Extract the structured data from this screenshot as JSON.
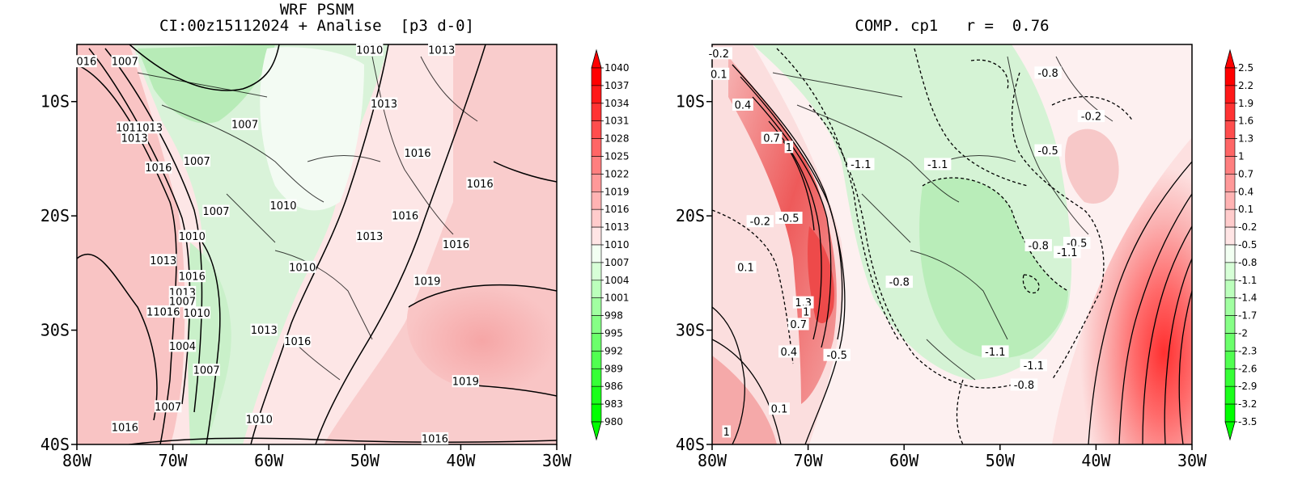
{
  "left_panel": {
    "title_line1": "WRF PSNM",
    "title_line2": "CI:00z15112024 + Analise  [p3 d-0]",
    "colorbar_levels": [
      "1040",
      "1037",
      "1034",
      "1031",
      "1028",
      "1025",
      "1022",
      "1019",
      "1016",
      "1013",
      "1010",
      "1007",
      "1004",
      "1001",
      "998",
      "995",
      "992",
      "989",
      "986",
      "983",
      "980"
    ],
    "contour_labels": [
      {
        "text": "016",
        "lon": -79.0,
        "lat": -6.5
      },
      {
        "text": "1007",
        "lon": -75.0,
        "lat": -6.5
      },
      {
        "text": "1010",
        "lon": -49.5,
        "lat": -5.5
      },
      {
        "text": "1013",
        "lon": -42.0,
        "lat": -5.5
      },
      {
        "text": "1013",
        "lon": -48.0,
        "lat": -10.2
      },
      {
        "text": "1007",
        "lon": -62.5,
        "lat": -12.0
      },
      {
        "text": "1011013",
        "lon": -73.5,
        "lat": -12.3
      },
      {
        "text": "1013",
        "lon": -74.0,
        "lat": -13.2
      },
      {
        "text": "1007",
        "lon": -67.5,
        "lat": -15.2
      },
      {
        "text": "1016",
        "lon": -71.5,
        "lat": -15.8
      },
      {
        "text": "1016",
        "lon": -44.5,
        "lat": -14.5
      },
      {
        "text": "1016",
        "lon": -38.0,
        "lat": -17.2
      },
      {
        "text": "1007",
        "lon": -65.5,
        "lat": -19.6
      },
      {
        "text": "1010",
        "lon": -58.5,
        "lat": -19.1
      },
      {
        "text": "1016",
        "lon": -45.8,
        "lat": -20.0
      },
      {
        "text": "1013",
        "lon": -49.5,
        "lat": -21.8
      },
      {
        "text": "1010",
        "lon": -68.0,
        "lat": -21.8
      },
      {
        "text": "1016",
        "lon": -40.5,
        "lat": -22.5
      },
      {
        "text": "1013",
        "lon": -71.0,
        "lat": -23.9
      },
      {
        "text": "1016",
        "lon": -68.0,
        "lat": -25.3
      },
      {
        "text": "1010",
        "lon": -56.5,
        "lat": -24.5
      },
      {
        "text": "1019",
        "lon": -43.5,
        "lat": -25.7
      },
      {
        "text": "1013",
        "lon": -69.0,
        "lat": -26.7
      },
      {
        "text": "1007",
        "lon": -69.0,
        "lat": -27.5
      },
      {
        "text": "11016",
        "lon": -71.0,
        "lat": -28.4
      },
      {
        "text": "1010",
        "lon": -67.5,
        "lat": -28.5
      },
      {
        "text": "1013",
        "lon": -60.5,
        "lat": -30.0
      },
      {
        "text": "1016",
        "lon": -57.0,
        "lat": -31.0
      },
      {
        "text": "1004",
        "lon": -69.0,
        "lat": -31.4
      },
      {
        "text": "1007",
        "lon": -66.5,
        "lat": -33.5
      },
      {
        "text": "1019",
        "lon": -39.5,
        "lat": -34.5
      },
      {
        "text": "1007",
        "lon": -70.5,
        "lat": -36.7
      },
      {
        "text": "1010",
        "lon": -61.0,
        "lat": -37.8
      },
      {
        "text": "1016",
        "lon": -75.0,
        "lat": -38.5
      },
      {
        "text": "1016",
        "lon": -42.7,
        "lat": -39.5
      }
    ]
  },
  "right_panel": {
    "title": "COMP. cp1   r =  0.76",
    "colorbar_levels": [
      "2.5",
      "2.2",
      "1.9",
      "1.6",
      "1.3",
      "1",
      "0.7",
      "0.4",
      "0.1",
      "-0.2",
      "-0.5",
      "-0.8",
      "-1.1",
      "-1.4",
      "-1.7",
      "-2",
      "-2.3",
      "-2.6",
      "-2.9",
      "-3.2",
      "-3.5"
    ],
    "contour_labels": [
      {
        "text": "-0.2",
        "lon": -79.3,
        "lat": -5.8
      },
      {
        "text": "0.1",
        "lon": -79.3,
        "lat": -7.6
      },
      {
        "text": "-0.8",
        "lon": -45.0,
        "lat": -7.5
      },
      {
        "text": "0.4",
        "lon": -76.8,
        "lat": -10.3
      },
      {
        "text": "-0.2",
        "lon": -40.5,
        "lat": -11.3
      },
      {
        "text": "0.7",
        "lon": -73.8,
        "lat": -13.2
      },
      {
        "text": "1",
        "lon": -72.0,
        "lat": -14.0
      },
      {
        "text": "-0.5",
        "lon": -45.0,
        "lat": -14.3
      },
      {
        "text": "-1.1",
        "lon": -64.5,
        "lat": -15.5
      },
      {
        "text": "-1.1",
        "lon": -56.5,
        "lat": -15.5
      },
      {
        "text": "-0.2",
        "lon": -75.0,
        "lat": -20.5
      },
      {
        "text": "-0.5",
        "lon": -72.0,
        "lat": -20.2
      },
      {
        "text": "-0.8",
        "lon": -46.0,
        "lat": -22.6
      },
      {
        "text": "-0.5",
        "lon": -42.0,
        "lat": -22.4
      },
      {
        "text": "-1.1",
        "lon": -43.0,
        "lat": -23.2
      },
      {
        "text": "0.1",
        "lon": -76.5,
        "lat": -24.5
      },
      {
        "text": "-0.8",
        "lon": -60.5,
        "lat": -25.8
      },
      {
        "text": "1.3",
        "lon": -70.5,
        "lat": -27.6
      },
      {
        "text": "1",
        "lon": -70.2,
        "lat": -28.4
      },
      {
        "text": "0.7",
        "lon": -71.0,
        "lat": -29.5
      },
      {
        "text": "0.4",
        "lon": -72.0,
        "lat": -31.9
      },
      {
        "text": "-0.5",
        "lon": -67.0,
        "lat": -32.2
      },
      {
        "text": "-1.1",
        "lon": -50.5,
        "lat": -31.9
      },
      {
        "text": "-1.1",
        "lon": -46.5,
        "lat": -33.1
      },
      {
        "text": "-0.8",
        "lon": -47.5,
        "lat": -34.8
      },
      {
        "text": "0.1",
        "lon": -73.0,
        "lat": -36.9
      },
      {
        "text": "1",
        "lon": -78.5,
        "lat": -38.9
      }
    ]
  },
  "axes": {
    "lon_ticks": [
      "80W",
      "70W",
      "60W",
      "50W",
      "40W",
      "30W"
    ],
    "lat_ticks": [
      "10S",
      "20S",
      "30S",
      "40S"
    ]
  },
  "map": {
    "lon_range": [
      -80,
      -30
    ],
    "lat_range": [
      -40,
      -5
    ]
  }
}
